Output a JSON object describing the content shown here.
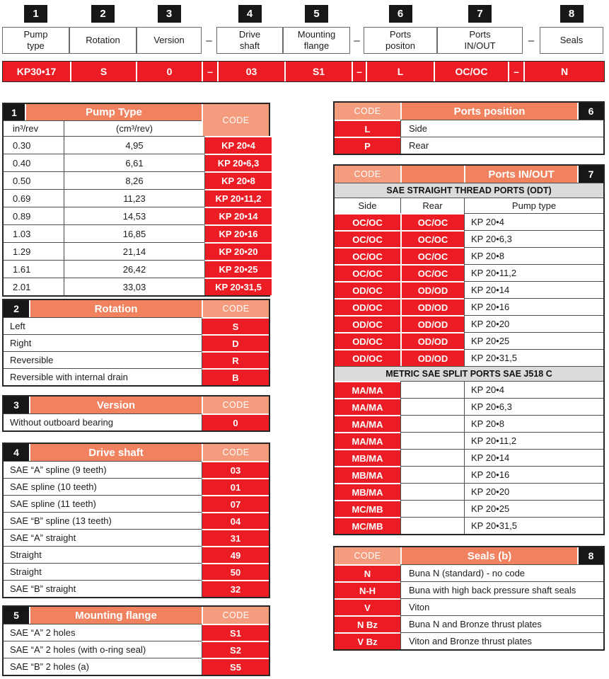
{
  "colors": {
    "salmon": "#F0825F",
    "salmon_light": "#F49C7D",
    "red": "#EC1C24",
    "black_box": "#171717",
    "gray_band": "#DBDBDB"
  },
  "top": {
    "dash": "–",
    "fields": [
      {
        "num": "1",
        "label": "Pump\ntype",
        "value": "KP30•17"
      },
      {
        "num": "2",
        "label": "Rotation",
        "value": "S"
      },
      {
        "num": "3",
        "label": "Version",
        "value": "0"
      },
      {
        "num": "4",
        "label": "Drive\nshaft",
        "value": "03"
      },
      {
        "num": "5",
        "label": "Mounting\nflange",
        "value": "S1"
      },
      {
        "num": "6",
        "label": "Ports\npositon",
        "value": "L"
      },
      {
        "num": "7",
        "label": "Ports\nIN/OUT",
        "value": "OC/OC"
      },
      {
        "num": "8",
        "label": "Seals",
        "value": "N"
      }
    ]
  },
  "pump_type": {
    "num": "1",
    "title": "Pump Type",
    "code_header": "CODE",
    "col1_header": "in³/rev",
    "col2_header": "(cm³/rev)",
    "rows": [
      {
        "in3": "0.30",
        "cm3": "4,95",
        "code": "KP 20•4"
      },
      {
        "in3": "0.40",
        "cm3": "6,61",
        "code": "KP 20•6,3"
      },
      {
        "in3": "0.50",
        "cm3": "8,26",
        "code": "KP 20•8"
      },
      {
        "in3": "0.69",
        "cm3": "11,23",
        "code": "KP 20•11,2"
      },
      {
        "in3": "0.89",
        "cm3": "14,53",
        "code": "KP 20•14"
      },
      {
        "in3": "1.03",
        "cm3": "16,85",
        "code": "KP 20•16"
      },
      {
        "in3": "1.29",
        "cm3": "21,14",
        "code": "KP 20•20"
      },
      {
        "in3": "1.61",
        "cm3": "26,42",
        "code": "KP 20•25"
      },
      {
        "in3": "2.01",
        "cm3": "33,03",
        "code": "KP 20•31,5"
      }
    ]
  },
  "rotation": {
    "num": "2",
    "title": "Rotation",
    "code_header": "CODE",
    "rows": [
      {
        "label": "Left",
        "code": "S"
      },
      {
        "label": "Right",
        "code": "D"
      },
      {
        "label": "Reversible",
        "code": "R"
      },
      {
        "label": "Reversible with internal drain",
        "code": "B"
      }
    ]
  },
  "version": {
    "num": "3",
    "title": "Version",
    "code_header": "CODE",
    "rows": [
      {
        "label": "Without outboard bearing",
        "code": "0"
      }
    ]
  },
  "drive_shaft": {
    "num": "4",
    "title": "Drive shaft",
    "code_header": "CODE",
    "rows": [
      {
        "label": "SAE “A” spline (9 teeth)",
        "code": "03"
      },
      {
        "label": "SAE spline (10 teeth)",
        "code": "01"
      },
      {
        "label": "SAE spline (11 teeth)",
        "code": "07"
      },
      {
        "label": "SAE “B” spline (13 teeth)",
        "code": "04"
      },
      {
        "label": "SAE “A” straight",
        "code": "31"
      },
      {
        "label": "Straight",
        "code": "49"
      },
      {
        "label": "Straight",
        "code": "50"
      },
      {
        "label": "SAE “B” straight",
        "code": "32"
      }
    ]
  },
  "mounting_flange": {
    "num": "5",
    "title": "Mounting flange",
    "code_header": "CODE",
    "rows": [
      {
        "label": "SAE “A” 2 holes",
        "code": "S1"
      },
      {
        "label": "SAE “A” 2 holes (with o-ring seal)",
        "code": "S2"
      },
      {
        "label": "SAE “B” 2 holes (a)",
        "code": "S5"
      }
    ]
  },
  "ports_position": {
    "num": "6",
    "title": "Ports position",
    "code_header": "CODE",
    "rows": [
      {
        "code": "L",
        "label": "Side"
      },
      {
        "code": "P",
        "label": "Rear"
      }
    ]
  },
  "ports_inout": {
    "num": "7",
    "title": "Ports IN/OUT",
    "code_header": "CODE",
    "section1": "SAE STRAIGHT THREAD PORTS (ODT)",
    "col_side": "Side",
    "col_rear": "Rear",
    "col_pump": "Pump type",
    "sae_rows": [
      {
        "side": "OC/OC",
        "rear": "OC/OC",
        "pump": "KP 20•4"
      },
      {
        "side": "OC/OC",
        "rear": "OC/OC",
        "pump": "KP 20•6,3"
      },
      {
        "side": "OC/OC",
        "rear": "OC/OC",
        "pump": "KP 20•8"
      },
      {
        "side": "OC/OC",
        "rear": "OC/OC",
        "pump": "KP 20•11,2"
      },
      {
        "side": "OD/OC",
        "rear": "OD/OD",
        "pump": "KP 20•14"
      },
      {
        "side": "OD/OC",
        "rear": "OD/OD",
        "pump": "KP 20•16"
      },
      {
        "side": "OD/OC",
        "rear": "OD/OD",
        "pump": "KP 20•20"
      },
      {
        "side": "OD/OC",
        "rear": "OD/OD",
        "pump": "KP 20•25"
      },
      {
        "side": "OD/OC",
        "rear": "OD/OD",
        "pump": "KP 20•31,5"
      }
    ],
    "section2": "METRIC SAE SPLIT PORTS SAE J518 C",
    "metric_rows": [
      {
        "side": "MA/MA",
        "pump": "KP 20•4"
      },
      {
        "side": "MA/MA",
        "pump": "KP 20•6,3"
      },
      {
        "side": "MA/MA",
        "pump": "KP 20•8"
      },
      {
        "side": "MA/MA",
        "pump": "KP 20•11,2"
      },
      {
        "side": "MB/MA",
        "pump": "KP 20•14"
      },
      {
        "side": "MB/MA",
        "pump": "KP 20•16"
      },
      {
        "side": "MB/MA",
        "pump": "KP 20•20"
      },
      {
        "side": "MC/MB",
        "pump": "KP 20•25"
      },
      {
        "side": "MC/MB",
        "pump": "KP 20•31,5"
      }
    ]
  },
  "seals": {
    "num": "8",
    "title": "Seals (b)",
    "code_header": "CODE",
    "rows": [
      {
        "code": "N",
        "label": "Buna N (standard) - no code"
      },
      {
        "code": "N-H",
        "label": "Buna with high back pressure shaft seals"
      },
      {
        "code": "V",
        "label": "Viton"
      },
      {
        "code": "N Bz",
        "label": "Buna N and Bronze thrust plates"
      },
      {
        "code": "V Bz",
        "label": "Viton and Bronze thrust plates"
      }
    ]
  }
}
